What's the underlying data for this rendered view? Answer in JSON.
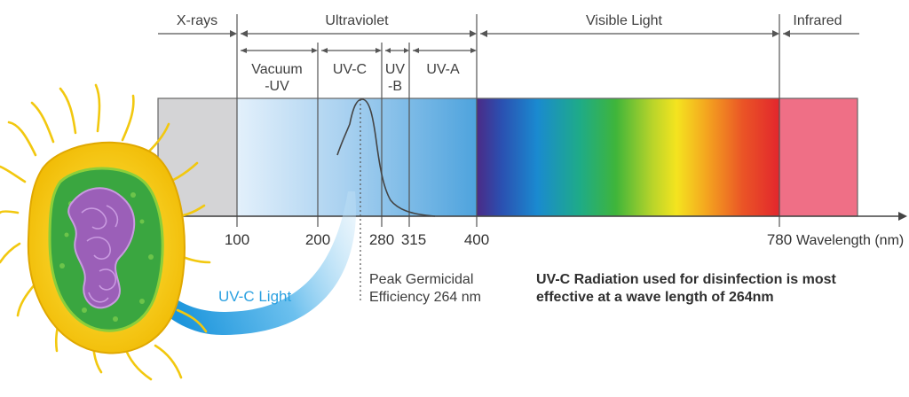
{
  "regions": {
    "xrays": "X-rays",
    "ultraviolet": "Ultraviolet",
    "visible": "Visible Light",
    "infrared": "Infrared"
  },
  "subregions": {
    "vacuum_uv_line1": "Vacuum",
    "vacuum_uv_line2": "-UV",
    "uvc": "UV-C",
    "uvb_line1": "UV",
    "uvb_line2": "-B",
    "uva": "UV-A"
  },
  "axis": {
    "ticks": [
      "100",
      "200",
      "280",
      "315",
      "400",
      "780"
    ],
    "label": "Wavelength (nm)"
  },
  "peak": {
    "line1": "Peak Germicidal",
    "line2": "Efficiency 264 nm"
  },
  "statement": {
    "line1": "UV-C Radiation used for disinfection is most",
    "line2": "effective at a wave length of 264nm"
  },
  "arrow_label": "UV-C Light",
  "colors": {
    "xray_band": "#d4d4d6",
    "uv_light": "#dcecf9",
    "uv_dark": "#58a9de",
    "infrared_band": "#ef6f86",
    "uvc_arrow": "#2aa0e0",
    "bacteria_outer": "#f6d31a",
    "bacteria_inner": "#3aa640",
    "bacteria_dna": "#9b5fb8"
  }
}
